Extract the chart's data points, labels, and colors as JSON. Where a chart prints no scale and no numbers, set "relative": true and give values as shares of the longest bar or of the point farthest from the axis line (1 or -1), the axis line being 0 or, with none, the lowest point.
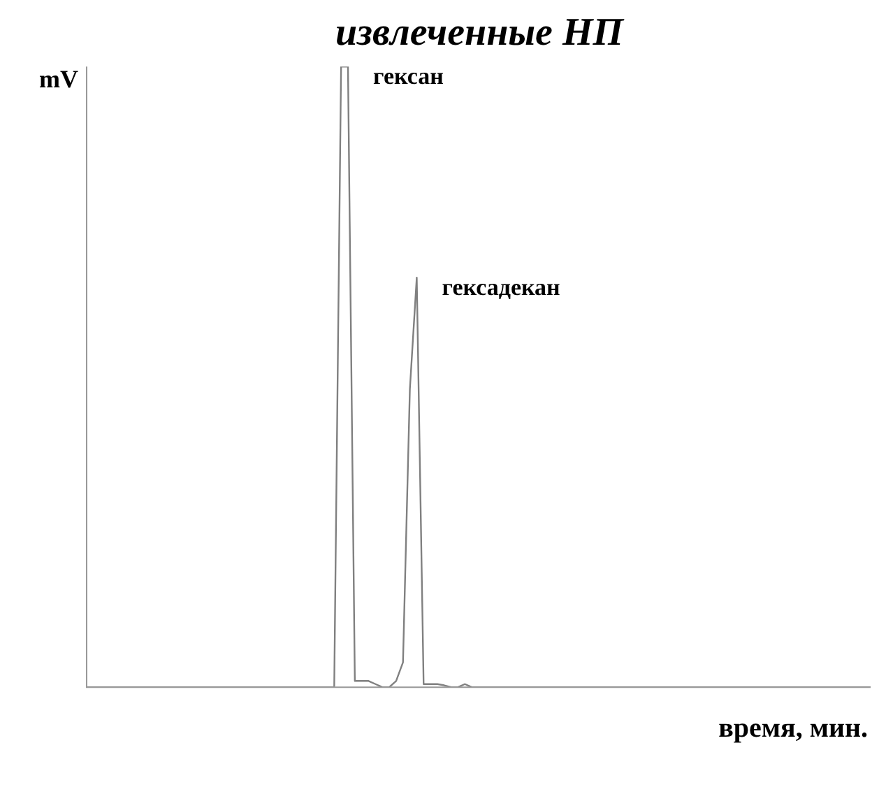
{
  "chart_data": {
    "type": "line",
    "title": "извлеченные НП",
    "ylabel": "mV",
    "xlabel": "время, мин.",
    "relative": true,
    "categories": [
      null,
      null,
      null,
      null,
      null,
      null,
      null,
      null,
      null,
      null,
      null,
      null,
      null,
      null,
      null,
      null,
      null,
      null,
      null,
      null,
      null,
      null,
      null,
      null,
      null,
      null,
      null,
      null,
      null,
      null,
      null,
      null,
      null,
      null,
      null,
      null,
      null,
      null,
      null,
      null,
      null,
      null,
      null,
      null,
      null,
      null,
      null,
      null,
      null,
      null,
      null,
      null,
      null,
      null,
      null,
      null,
      null,
      null,
      null,
      null,
      null,
      null,
      null,
      null,
      null,
      null,
      null,
      null,
      null,
      null,
      null,
      null,
      null,
      null,
      null,
      null,
      null,
      null,
      null,
      null,
      null,
      null,
      null,
      null,
      null,
      null,
      null,
      null,
      null,
      null,
      null,
      null,
      null,
      null,
      null,
      null,
      null,
      null,
      null,
      null,
      null,
      null,
      null,
      null,
      null,
      null,
      null,
      null,
      null,
      null,
      null,
      null,
      null,
      null,
      null
    ],
    "series": [
      {
        "color": "#808080",
        "values": [
          0,
          0,
          0,
          0,
          0,
          0,
          0,
          0,
          0,
          0,
          0,
          0,
          0,
          0,
          0,
          0,
          0,
          0,
          0,
          0,
          0,
          0,
          0,
          0,
          0,
          0,
          0,
          0,
          0,
          0,
          0,
          0,
          0,
          0,
          0,
          0,
          0,
          1,
          1,
          0.01,
          0.01,
          0.01,
          0.005,
          0,
          0,
          0.01,
          0.04,
          0.48,
          0.66,
          0.005,
          0.005,
          0.005,
          0.003,
          0,
          0,
          0.005,
          0,
          0,
          0,
          0,
          0,
          0,
          0,
          0,
          0,
          0,
          0,
          0,
          0,
          0,
          0,
          0,
          0,
          0,
          0,
          0,
          0,
          0,
          0,
          0,
          0,
          0,
          0,
          0,
          0,
          0,
          0,
          0,
          0,
          0,
          0,
          0,
          0,
          0,
          0,
          0,
          0,
          0,
          0,
          0,
          0,
          0,
          0,
          0,
          0,
          0,
          0,
          0,
          0,
          0,
          0,
          0,
          0,
          0,
          0
        ]
      }
    ],
    "annotations": [
      "гексан",
      "гексадекан"
    ],
    "grid": false,
    "legend": false,
    "marker": "none",
    "line_style": "solid"
  }
}
